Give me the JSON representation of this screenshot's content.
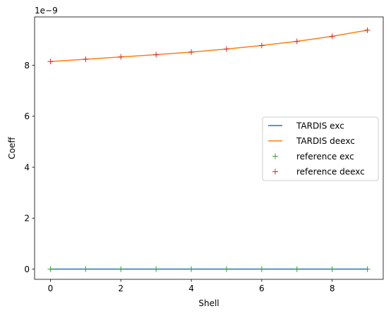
{
  "chart_data": {
    "type": "line",
    "title": "",
    "xlabel": "Shell",
    "ylabel": "Coeff",
    "offset_text": "1e−9",
    "xlim": [
      -0.45,
      9.45
    ],
    "ylim": [
      -0.4,
      9.9
    ],
    "xticks": [
      0,
      2,
      4,
      6,
      8
    ],
    "xtick_labels": [
      "0",
      "2",
      "4",
      "6",
      "8"
    ],
    "yticks": [
      0,
      2,
      4,
      6,
      8
    ],
    "ytick_labels": [
      "0",
      "2",
      "4",
      "6",
      "8"
    ],
    "grid": false,
    "legend_position": "center-right",
    "x": [
      0,
      1,
      2,
      3,
      4,
      5,
      6,
      7,
      8,
      9
    ],
    "series": [
      {
        "name": "TARDIS exc",
        "kind": "line",
        "color": "#1f77b4",
        "values": [
          0,
          0,
          0,
          0,
          0,
          0,
          0,
          0,
          0,
          0
        ]
      },
      {
        "name": "TARDIS deexc",
        "kind": "line",
        "color": "#ff7f0e",
        "values": [
          8.15,
          8.24,
          8.33,
          8.42,
          8.52,
          8.64,
          8.78,
          8.94,
          9.14,
          9.38
        ]
      },
      {
        "name": "reference exc",
        "kind": "marker",
        "color": "#2ca02c",
        "values": [
          0,
          0,
          0,
          0,
          0,
          0,
          0,
          0,
          0,
          0
        ]
      },
      {
        "name": "reference deexc",
        "kind": "marker",
        "color": "#d62728",
        "values": [
          8.15,
          8.24,
          8.33,
          8.42,
          8.52,
          8.64,
          8.78,
          8.94,
          9.14,
          9.38
        ]
      }
    ]
  }
}
